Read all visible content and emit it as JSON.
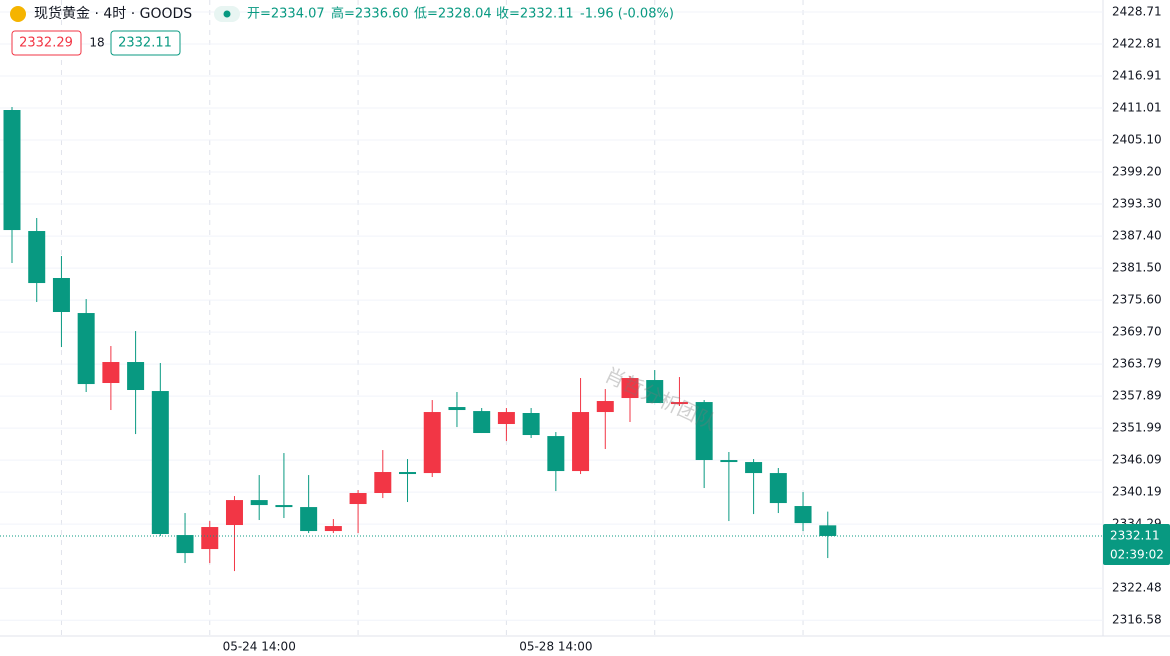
{
  "header": {
    "symbol": "现货黄金 · 4时 · GOODS",
    "open": "开=2334.07",
    "high": "高=2336.60",
    "low": "低=2328.04",
    "close": "收=2332.11",
    "change": "-1.96 (-0.08%)",
    "bid": "2332.29",
    "spread": "18",
    "ask": "2332.11"
  },
  "chart_data": {
    "type": "candlestick",
    "watermark": "肖哲分析团队",
    "categories": [
      null,
      null,
      null,
      null,
      null,
      null,
      null,
      null,
      null,
      null,
      "05-24 14:00",
      null,
      null,
      null,
      null,
      null,
      null,
      null,
      null,
      null,
      null,
      null,
      "05-28 14:00",
      null,
      null,
      null,
      null,
      null,
      null,
      null,
      null,
      null,
      null,
      null
    ],
    "open": [
      2410.64,
      2388.33,
      2379.67,
      2373.21,
      2360.31,
      2364.18,
      2358.83,
      2332.28,
      2329.7,
      2334.13,
      2338.73,
      2337.81,
      2337.44,
      2333.02,
      2338.0,
      2340.03,
      2343.9,
      2343.71,
      2355.88,
      2355.14,
      2352.75,
      2354.78,
      2350.53,
      2344.08,
      2354.96,
      2357.54,
      2360.86,
      2356.43,
      2356.8,
      2346.11,
      2345.74,
      2343.71,
      2337.63,
      2334.07
    ],
    "high": [
      2411.19,
      2390.73,
      2383.72,
      2375.79,
      2367.13,
      2369.89,
      2363.99,
      2336.34,
      2334.86,
      2339.47,
      2343.34,
      2347.4,
      2343.34,
      2335.23,
      2340.58,
      2347.95,
      2346.29,
      2357.17,
      2358.65,
      2355.7,
      2355.7,
      2355.7,
      2351.27,
      2361.23,
      2359.2,
      2361.6,
      2362.7,
      2361.41,
      2357.17,
      2347.59,
      2346.29,
      2344.64,
      2340.21,
      2336.6
    ],
    "low": [
      2382.43,
      2375.24,
      2366.94,
      2358.65,
      2355.33,
      2350.9,
      2332.1,
      2327.12,
      2327.12,
      2325.64,
      2335.05,
      2335.42,
      2332.65,
      2332.65,
      2332.65,
      2339.1,
      2338.37,
      2342.98,
      2352.19,
      2351.09,
      2349.61,
      2350.17,
      2340.39,
      2343.53,
      2348.14,
      2353.12,
      2356.62,
      2356.07,
      2340.95,
      2334.86,
      2336.15,
      2336.34,
      2333.02,
      2328.04
    ],
    "close": [
      2388.51,
      2378.74,
      2373.4,
      2360.12,
      2364.18,
      2359.02,
      2332.47,
      2328.96,
      2333.76,
      2338.73,
      2337.81,
      2337.44,
      2333.02,
      2333.94,
      2340.03,
      2343.9,
      2343.53,
      2354.96,
      2355.33,
      2351.09,
      2354.96,
      2350.72,
      2344.08,
      2354.96,
      2356.99,
      2361.23,
      2356.62,
      2356.8,
      2346.11,
      2345.74,
      2343.71,
      2338.18,
      2334.49,
      2332.11
    ],
    "up_color": "#f23645",
    "down_color": "#089981",
    "last_price": 2332.11,
    "countdown": "02:39:02",
    "ylim": [
      2313.67,
      2430.92
    ],
    "yticks": [
      2316.58,
      2322.48,
      2334.29,
      2340.19,
      2346.09,
      2351.99,
      2357.89,
      2363.79,
      {
        "value": 2369.7,
        "label": "2369.70"
      },
      {
        "value": 2375.6,
        "label": "2375.60"
      },
      {
        "value": 2381.5,
        "label": "2381.50"
      },
      {
        "value": 2387.4,
        "label": "2387.40"
      },
      {
        "value": 2393.3,
        "label": "2393.30"
      },
      {
        "value": 2399.2,
        "label": "2399.20"
      },
      {
        "value": 2405.1,
        "label": "2405.10"
      },
      2411.01,
      2416.91,
      2422.81,
      2428.71
    ],
    "grid": true
  }
}
